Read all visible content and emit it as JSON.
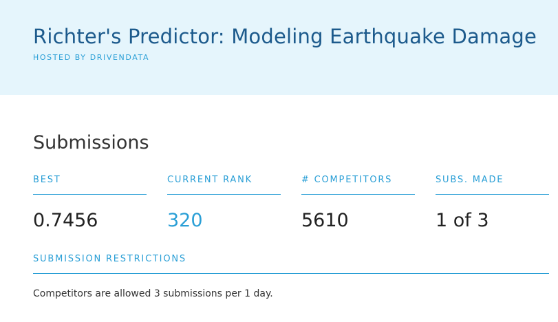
{
  "header": {
    "title": "Richter's Predictor: Modeling Earthquake Damage",
    "hosted_by": "HOSTED BY DRIVENDATA"
  },
  "submissions": {
    "heading": "Submissions",
    "stats": [
      {
        "label": "BEST",
        "value": "0.7456"
      },
      {
        "label": "CURRENT RANK",
        "value": "320"
      },
      {
        "label": "# COMPETITORS",
        "value": "5610"
      },
      {
        "label": "SUBS. MADE",
        "value": "1 of 3"
      }
    ],
    "restrictions": {
      "label": "SUBMISSION RESTRICTIONS",
      "text": "Competitors are allowed 3 submissions per 1 day."
    }
  },
  "colors": {
    "header_bg": "#e5f5fc",
    "title": "#1c5a8c",
    "accent": "#2a9fd6"
  }
}
